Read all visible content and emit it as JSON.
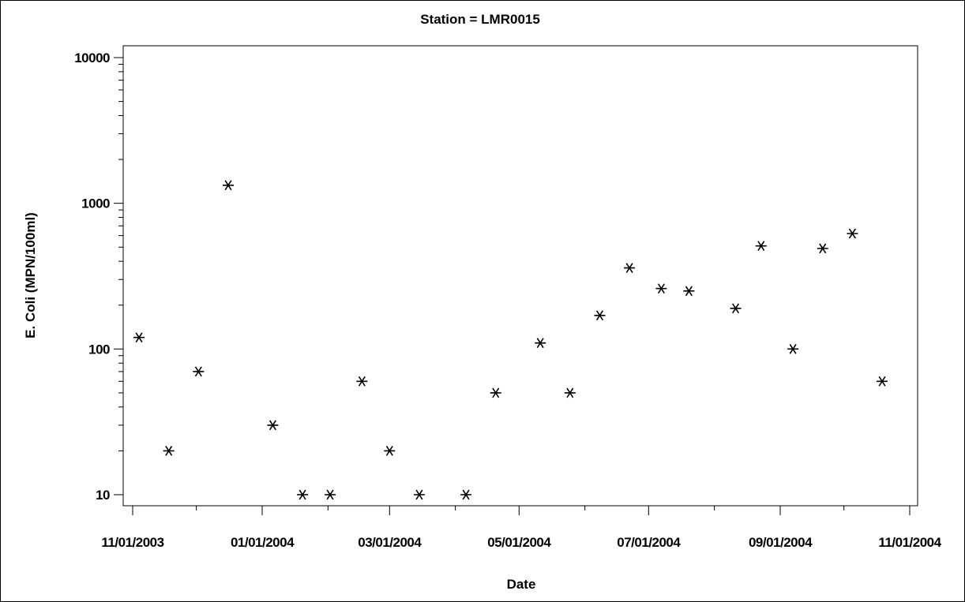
{
  "chart_data": {
    "type": "scatter",
    "title": "Station = LMR0015",
    "xlabel": "Date",
    "ylabel": "E. Coli (MPN/100ml)",
    "x_axis": {
      "type": "date",
      "range": [
        "2003-11-01",
        "2004-11-01"
      ],
      "tick_labels": [
        "11/01/2003",
        "01/01/2004",
        "03/01/2004",
        "05/01/2004",
        "07/01/2004",
        "09/01/2004",
        "11/01/2004"
      ],
      "tick_values": [
        "2003-11-01",
        "2004-01-01",
        "2004-03-01",
        "2004-05-01",
        "2004-07-01",
        "2004-09-01",
        "2004-11-01"
      ],
      "minor_tick_values": [
        "2003-12-01",
        "2004-02-01",
        "2004-04-01",
        "2004-06-01",
        "2004-08-01",
        "2004-10-01"
      ]
    },
    "y_axis": {
      "scale": "log",
      "range": [
        10,
        10000
      ],
      "tick_labels": [
        "10",
        "100",
        "1000",
        "10000"
      ],
      "tick_values": [
        10,
        100,
        1000,
        10000
      ]
    },
    "marker": "star",
    "grid": false,
    "points": [
      {
        "x": "2003-11-04",
        "y": 120
      },
      {
        "x": "2003-11-18",
        "y": 20
      },
      {
        "x": "2003-12-02",
        "y": 70
      },
      {
        "x": "2003-12-16",
        "y": 1330
      },
      {
        "x": "2004-01-06",
        "y": 30
      },
      {
        "x": "2004-01-20",
        "y": 10
      },
      {
        "x": "2004-02-02",
        "y": 10
      },
      {
        "x": "2004-02-17",
        "y": 60
      },
      {
        "x": "2004-03-01",
        "y": 20
      },
      {
        "x": "2004-03-15",
        "y": 10
      },
      {
        "x": "2004-04-06",
        "y": 10
      },
      {
        "x": "2004-04-20",
        "y": 50
      },
      {
        "x": "2004-05-11",
        "y": 110
      },
      {
        "x": "2004-05-25",
        "y": 50
      },
      {
        "x": "2004-06-08",
        "y": 170
      },
      {
        "x": "2004-06-22",
        "y": 360
      },
      {
        "x": "2004-07-07",
        "y": 260
      },
      {
        "x": "2004-07-20",
        "y": 250
      },
      {
        "x": "2004-08-11",
        "y": 190
      },
      {
        "x": "2004-08-23",
        "y": 510
      },
      {
        "x": "2004-09-07",
        "y": 100
      },
      {
        "x": "2004-09-21",
        "y": 490
      },
      {
        "x": "2004-10-05",
        "y": 620
      },
      {
        "x": "2004-10-19",
        "y": 60
      }
    ]
  }
}
